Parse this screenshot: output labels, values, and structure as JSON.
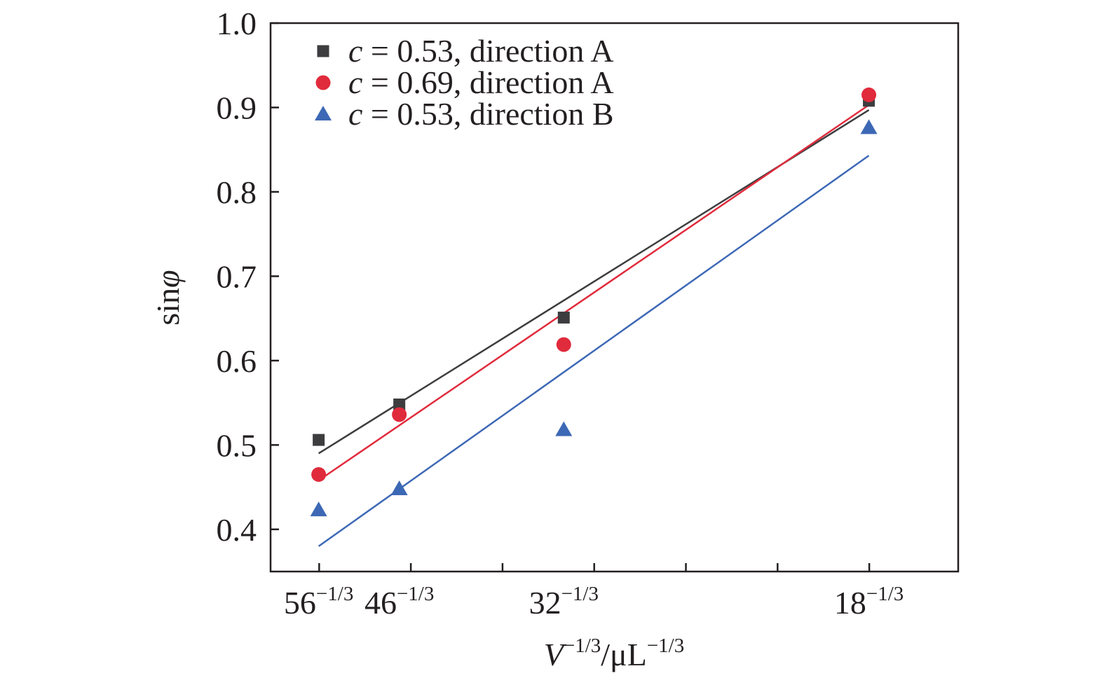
{
  "chart_data": {
    "type": "scatter",
    "xlabel": {
      "base": "V",
      "exp1": "−1/3",
      "mid": "/μL",
      "exp2": "−1/3"
    },
    "ylabel": {
      "prefix": "sin",
      "symbol": "φ"
    },
    "x_tick_labels": [
      {
        "x": 0.2615,
        "base": "56",
        "exp": "−1/3"
      },
      {
        "x": 0.2791,
        "base": "46",
        "exp": "−1/3"
      },
      {
        "x": 0.315,
        "base": "32",
        "exp": "−1/3"
      },
      {
        "x": 0.3816,
        "base": "18",
        "exp": "−1/3"
      }
    ],
    "xlim": [
      0.251,
      0.4011
    ],
    "ylim": [
      0.35,
      1.0
    ],
    "yticks": [
      "0.4",
      "0.5",
      "0.6",
      "0.7",
      "0.8",
      "0.9",
      "1.0"
    ],
    "grid": false,
    "legend_position": "top-left",
    "series": [
      {
        "name_var": "c",
        "name_rest": " = 0.53, direction A",
        "marker": "square",
        "color": "#3d3d3f",
        "points": [
          [
            0.2615,
            0.506
          ],
          [
            0.2791,
            0.548
          ],
          [
            0.315,
            0.651
          ],
          [
            0.3816,
            0.908
          ]
        ],
        "fit": [
          [
            0.2615,
            0.49
          ],
          [
            0.3816,
            0.897
          ]
        ]
      },
      {
        "name_var": "c",
        "name_rest": " = 0.69, direction A",
        "marker": "circle",
        "color": "#e02b3c",
        "points": [
          [
            0.2615,
            0.465
          ],
          [
            0.2791,
            0.536
          ],
          [
            0.315,
            0.619
          ],
          [
            0.3816,
            0.915
          ]
        ],
        "fit": [
          [
            0.2615,
            0.458
          ],
          [
            0.3816,
            0.903
          ]
        ]
      },
      {
        "name_var": "c",
        "name_rest": " = 0.53, direction B",
        "marker": "triangle",
        "color": "#3d68b5",
        "points": [
          [
            0.2615,
            0.423
          ],
          [
            0.2791,
            0.448
          ],
          [
            0.315,
            0.518
          ],
          [
            0.3816,
            0.876
          ]
        ],
        "fit": [
          [
            0.2615,
            0.38
          ],
          [
            0.3816,
            0.843
          ]
        ]
      }
    ]
  }
}
